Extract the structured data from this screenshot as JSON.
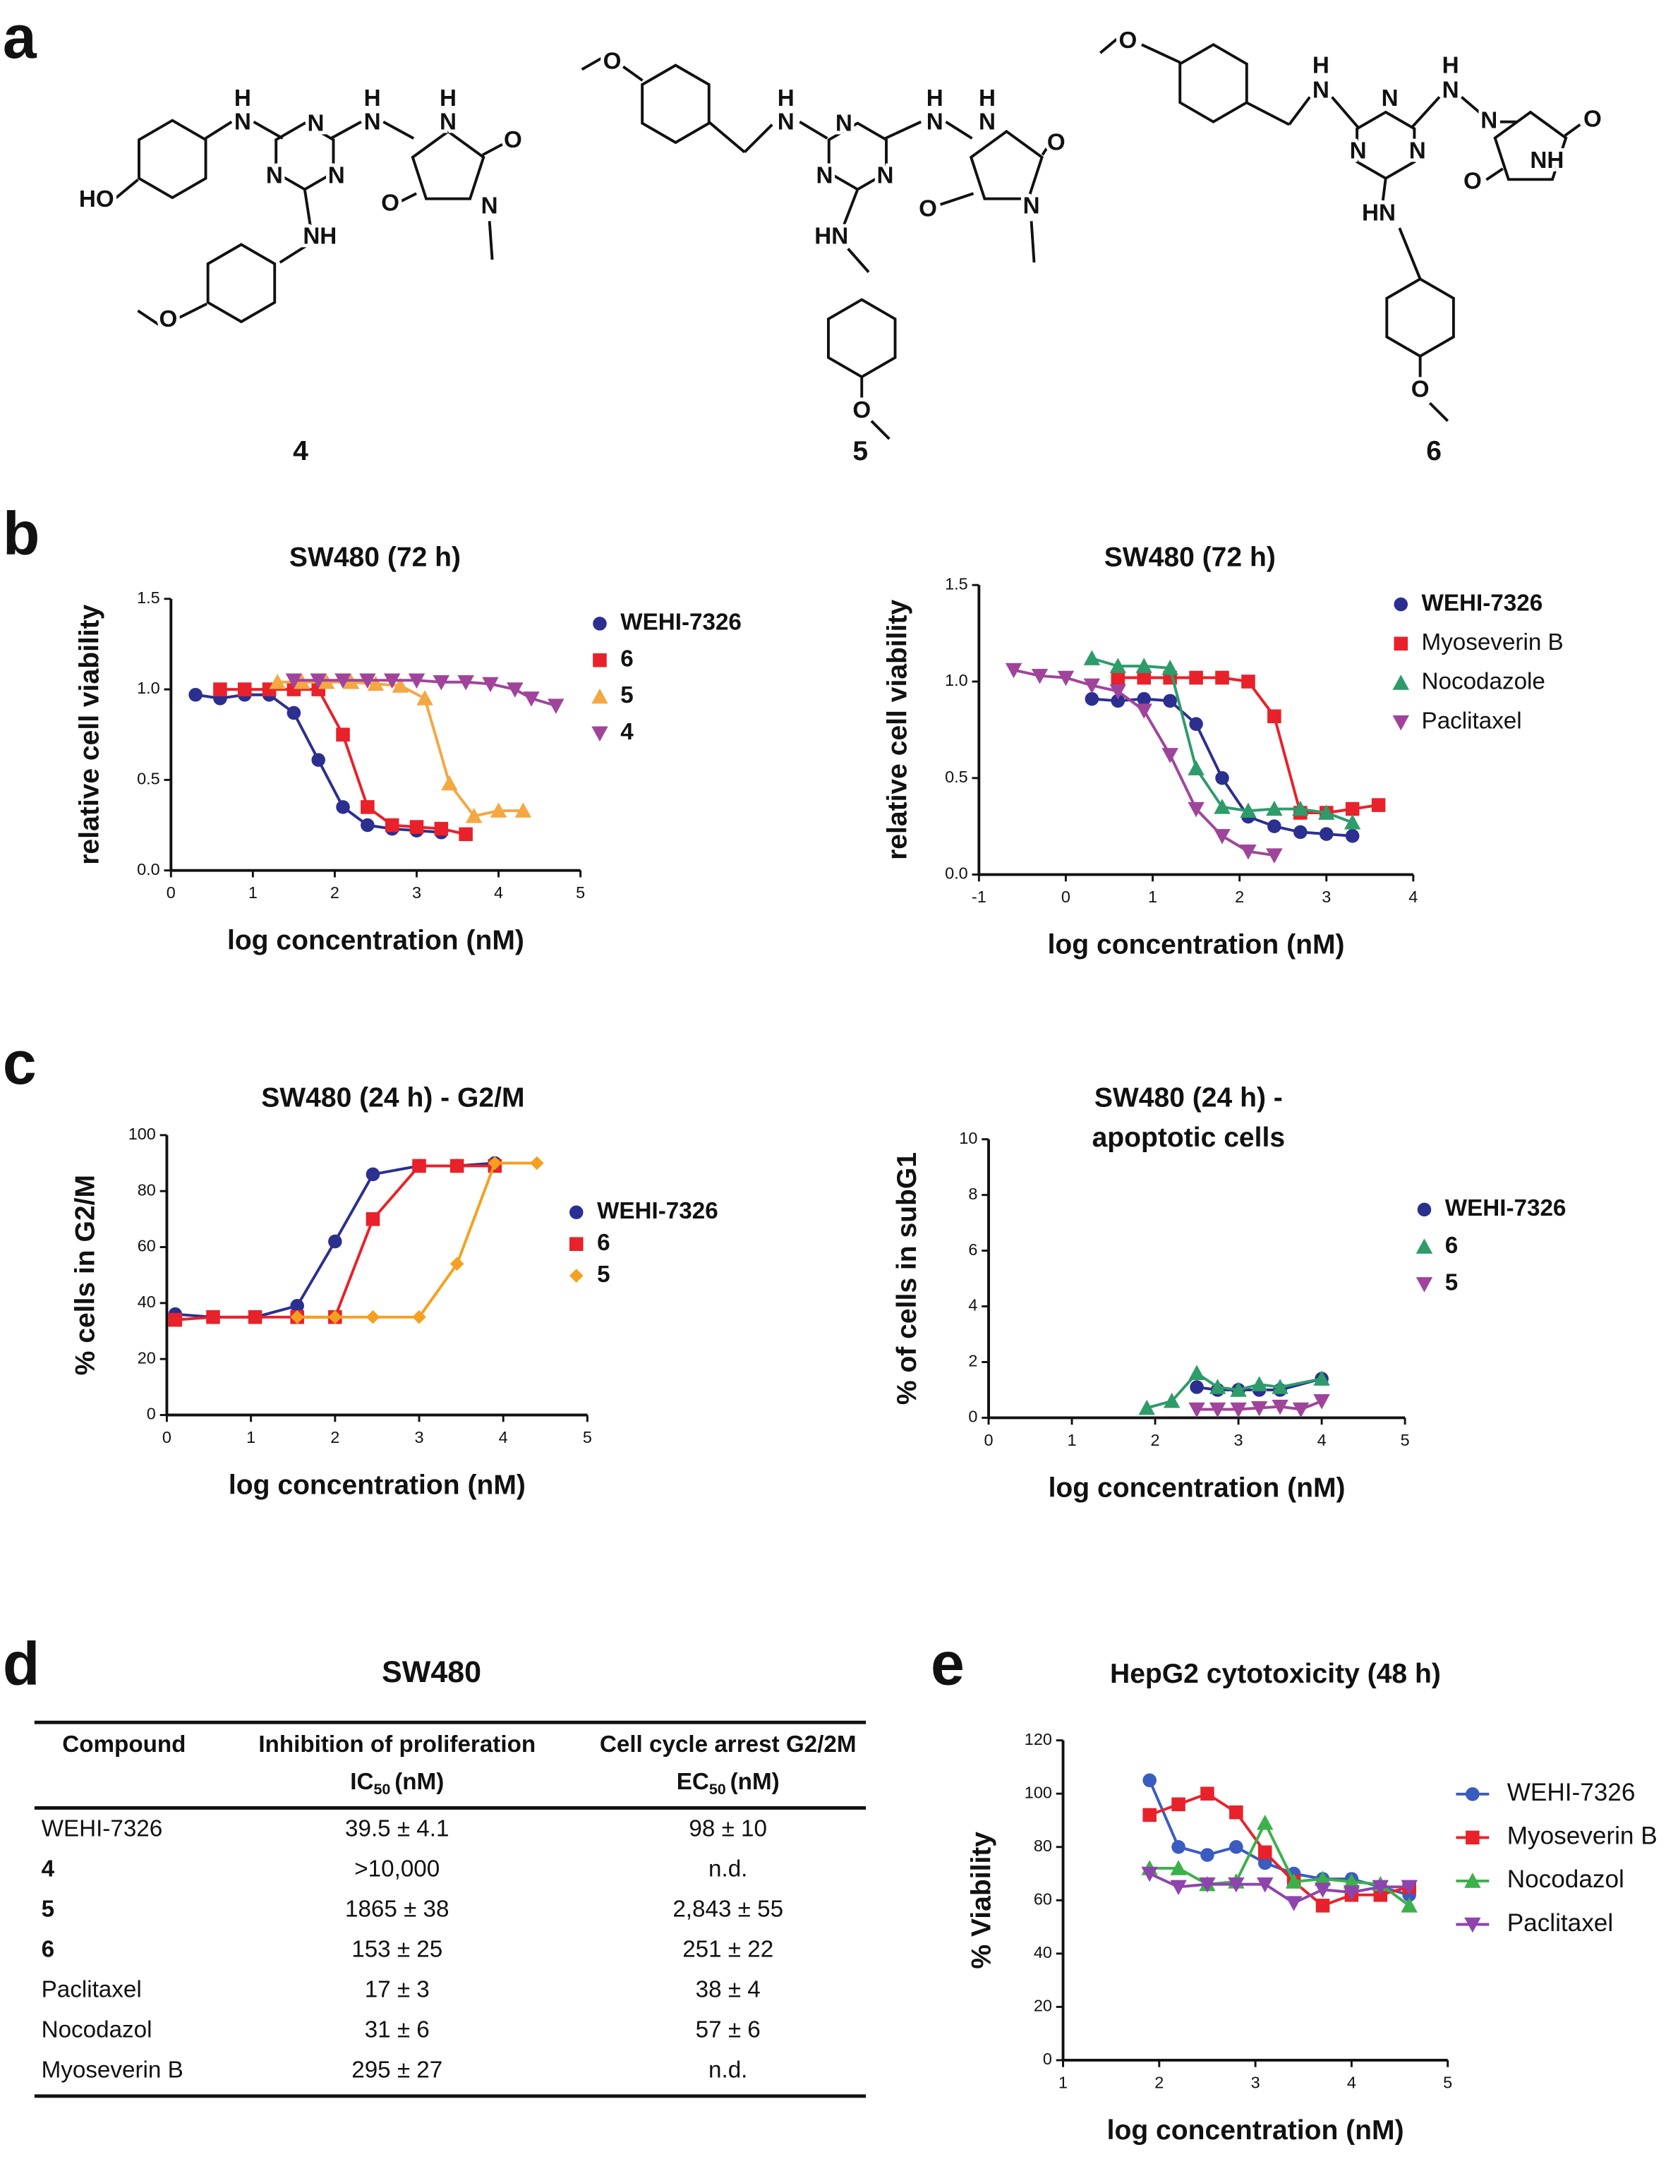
{
  "panels": [
    "a",
    "b",
    "c",
    "d",
    "e"
  ],
  "structures": [
    {
      "label": "4",
      "atoms": [
        "H",
        "N",
        "N",
        "N",
        "N",
        "H",
        "N",
        "H",
        "N",
        "O",
        "N",
        "O",
        "HO",
        "NH",
        "O"
      ]
    },
    {
      "label": "5",
      "atoms": [
        "O",
        "H",
        "N",
        "N",
        "N",
        "N",
        "H",
        "N",
        "H",
        "N",
        "O",
        "N",
        "O",
        "HN",
        "O"
      ]
    },
    {
      "label": "6",
      "atoms": [
        "O",
        "H",
        "N",
        "N",
        "N",
        "N",
        "H",
        "N",
        "N",
        "O",
        "O",
        "NH",
        "HN",
        "O"
      ]
    }
  ],
  "chart_data": [
    {
      "type": "line",
      "title": "SW480 (72 h)",
      "xlabel": "log concentration (nM)",
      "ylabel": "relative cell viability",
      "xlim": [
        0,
        5
      ],
      "ylim": [
        0,
        1.5
      ],
      "xticks": [
        0,
        1,
        2,
        3,
        4,
        5
      ],
      "yticks": [
        {
          "value": 0,
          "label": "0.0"
        },
        0.5,
        {
          "value": 1,
          "label": "1.0"
        },
        1.5
      ],
      "legend": "right",
      "series": [
        {
          "name": "WEHI-7326",
          "color": "#2b2f8f",
          "marker": "circle",
          "x": [
            0.3,
            0.6,
            0.9,
            1.2,
            1.5,
            1.8,
            2.1,
            2.4,
            2.7,
            3.0,
            3.3
          ],
          "values": [
            0.97,
            0.95,
            0.97,
            0.97,
            0.87,
            0.61,
            0.35,
            0.25,
            0.23,
            0.22,
            0.21
          ]
        },
        {
          "name": "6",
          "color": "#e8212a",
          "marker": "square",
          "x": [
            0.6,
            0.9,
            1.2,
            1.5,
            1.8,
            2.1,
            2.4,
            2.7,
            3.0,
            3.3,
            3.6
          ],
          "values": [
            1.0,
            1.0,
            1.0,
            1.0,
            1.0,
            0.75,
            0.35,
            0.25,
            0.24,
            0.23,
            0.2
          ]
        },
        {
          "name": "5",
          "color": "#f5a742",
          "marker": "triangle-up",
          "x": [
            1.3,
            1.6,
            1.9,
            2.2,
            2.5,
            2.8,
            3.1,
            3.4,
            3.7,
            4.0,
            4.3
          ],
          "values": [
            1.04,
            1.04,
            1.04,
            1.04,
            1.03,
            1.02,
            0.95,
            0.48,
            0.3,
            0.33,
            0.33
          ]
        },
        {
          "name": "4",
          "color": "#a0449b",
          "marker": "triangle-down",
          "x": [
            1.5,
            1.8,
            2.1,
            2.4,
            2.7,
            3.0,
            3.3,
            3.6,
            3.9,
            4.2,
            4.4,
            4.7
          ],
          "values": [
            1.05,
            1.05,
            1.05,
            1.05,
            1.05,
            1.05,
            1.04,
            1.04,
            1.03,
            1.0,
            0.95,
            0.91
          ]
        }
      ]
    },
    {
      "type": "line",
      "title": "SW480 (72 h)",
      "xlabel": "log concentration (nM)",
      "ylabel": "relative cell viability",
      "xlim": [
        -1,
        4
      ],
      "ylim": [
        0,
        1.5
      ],
      "xticks": [
        -1,
        0,
        1,
        2,
        3,
        4
      ],
      "yticks": [
        {
          "value": 0,
          "label": "0.0"
        },
        0.5,
        {
          "value": 1,
          "label": "1.0"
        },
        1.5
      ],
      "legend": "right",
      "series": [
        {
          "name": "WEHI-7326",
          "color": "#2b2f8f",
          "marker": "circle",
          "x": [
            0.3,
            0.6,
            0.9,
            1.2,
            1.5,
            1.8,
            2.1,
            2.4,
            2.7,
            3.0,
            3.3
          ],
          "values": [
            0.91,
            0.9,
            0.91,
            0.9,
            0.78,
            0.5,
            0.3,
            0.25,
            0.22,
            0.21,
            0.2
          ]
        },
        {
          "name": "Myoseverin B",
          "color": "#e8212a",
          "marker": "square",
          "x": [
            0.6,
            0.9,
            1.2,
            1.5,
            1.8,
            2.1,
            2.4,
            2.7,
            3.0,
            3.3,
            3.6
          ],
          "values": [
            1.02,
            1.02,
            1.02,
            1.02,
            1.02,
            1.0,
            0.82,
            0.32,
            0.32,
            0.34,
            0.36
          ]
        },
        {
          "name": "Nocodazole",
          "color": "#2e9b6b",
          "marker": "triangle-up",
          "x": [
            0.3,
            0.6,
            0.9,
            1.2,
            1.5,
            1.8,
            2.1,
            2.4,
            2.7,
            3.0,
            3.3
          ],
          "values": [
            1.12,
            1.08,
            1.08,
            1.07,
            0.55,
            0.35,
            0.33,
            0.34,
            0.34,
            0.32,
            0.27
          ]
        },
        {
          "name": "Paclitaxel",
          "color": "#a0449b",
          "marker": "triangle-down",
          "x": [
            -0.6,
            -0.3,
            0,
            0.3,
            0.6,
            0.9,
            1.2,
            1.5,
            1.8,
            2.1,
            2.4
          ],
          "values": [
            1.06,
            1.03,
            1.02,
            0.98,
            0.95,
            0.85,
            0.62,
            0.34,
            0.2,
            0.12,
            0.1
          ]
        }
      ]
    },
    {
      "type": "line",
      "title": "SW480 (24 h) - G2/M",
      "xlabel": "log concentration (nM)",
      "ylabel": "% cells in G2/M",
      "xlim": [
        0,
        5
      ],
      "ylim": [
        0,
        100
      ],
      "xticks": [
        0,
        1,
        2,
        3,
        4,
        5
      ],
      "yticks": [
        0,
        20,
        40,
        60,
        80,
        100
      ],
      "legend": "right",
      "series": [
        {
          "name": "WEHI-7326",
          "color": "#2b2f8f",
          "marker": "circle",
          "x": [
            0.1,
            0.55,
            1.05,
            1.55,
            2.0,
            2.45,
            3.0,
            3.45,
            3.9
          ],
          "values": [
            36,
            35,
            35,
            39,
            62,
            86,
            89,
            89,
            90
          ]
        },
        {
          "name": "6",
          "color": "#e8212a",
          "marker": "square",
          "x": [
            0.1,
            0.55,
            1.05,
            1.55,
            2.0,
            2.45,
            3.0,
            3.45,
            3.9
          ],
          "values": [
            34,
            35,
            35,
            35,
            35,
            70,
            89,
            89,
            89
          ]
        },
        {
          "name": "5",
          "color": "#f5a020",
          "marker": "diamond",
          "x": [
            1.55,
            2.0,
            2.45,
            3.0,
            3.45,
            3.9,
            4.4
          ],
          "values": [
            35,
            35,
            35,
            35,
            54,
            90,
            90
          ]
        }
      ]
    },
    {
      "type": "line",
      "title": "SW480 (24 h) -",
      "subtitle": "apoptotic cells",
      "xlabel": "log concentration (nM)",
      "ylabel": "% of cells in subG1",
      "xlim": [
        0,
        5
      ],
      "ylim": [
        0,
        10
      ],
      "xticks": [
        0,
        1,
        2,
        3,
        4,
        5
      ],
      "yticks": [
        0,
        2,
        4,
        6,
        8,
        10
      ],
      "legend": "right",
      "series": [
        {
          "name": "WEHI-7326",
          "color": "#2b2f8f",
          "marker": "circle",
          "x": [
            2.5,
            2.75,
            3.0,
            3.25,
            3.5,
            4.0
          ],
          "values": [
            1.1,
            1.0,
            1.0,
            1.0,
            1.0,
            1.4
          ]
        },
        {
          "name": "6",
          "color": "#2e9b6b",
          "marker": "triangle-up",
          "x": [
            1.9,
            2.2,
            2.5,
            2.75,
            3.0,
            3.25,
            3.5,
            4.0
          ],
          "values": [
            0.35,
            0.6,
            1.6,
            1.1,
            1.0,
            1.2,
            1.1,
            1.4
          ]
        },
        {
          "name": "5",
          "color": "#a0449b",
          "marker": "triangle-down",
          "x": [
            2.5,
            2.75,
            3.0,
            3.25,
            3.5,
            3.75,
            4.0
          ],
          "values": [
            0.3,
            0.3,
            0.3,
            0.35,
            0.4,
            0.3,
            0.6
          ]
        }
      ]
    },
    {
      "type": "line",
      "title": "HepG2 cytotoxicity (48 h)",
      "xlabel": "log concentration (nM)",
      "ylabel": "% Viability",
      "xlim": [
        1,
        5
      ],
      "ylim": [
        0,
        120
      ],
      "xticks": [
        1,
        2,
        3,
        4,
        5
      ],
      "yticks": [
        0,
        20,
        40,
        60,
        80,
        100,
        120
      ],
      "legend": "right",
      "series": [
        {
          "name": "WEHI-7326",
          "color": "#3a5bbf",
          "marker": "circle",
          "x": [
            1.9,
            2.2,
            2.5,
            2.8,
            3.1,
            3.4,
            3.7,
            4.0,
            4.3,
            4.6
          ],
          "values": [
            105,
            80,
            77,
            80,
            74,
            70,
            68,
            68,
            65,
            62
          ]
        },
        {
          "name": "Myoseverin B",
          "color": "#e8212a",
          "marker": "square",
          "x": [
            1.9,
            2.2,
            2.5,
            2.8,
            3.1,
            3.4,
            3.7,
            4.0,
            4.3,
            4.6
          ],
          "values": [
            92,
            96,
            100,
            93,
            78,
            67,
            58,
            62,
            62,
            65
          ]
        },
        {
          "name": "Nocodazol",
          "color": "#3cb04a",
          "marker": "triangle-up",
          "x": [
            1.9,
            2.2,
            2.5,
            2.8,
            3.1,
            3.4,
            3.7,
            4.0,
            4.3,
            4.6
          ],
          "values": [
            72,
            72,
            66,
            67,
            89,
            67,
            68,
            67,
            66,
            58
          ]
        },
        {
          "name": "Paclitaxel",
          "color": "#8e44ad",
          "marker": "triangle-down",
          "x": [
            1.9,
            2.2,
            2.5,
            2.8,
            3.1,
            3.4,
            3.7,
            4.0,
            4.3,
            4.6
          ],
          "values": [
            70,
            65,
            66,
            66,
            66,
            59,
            64,
            63,
            65,
            65
          ]
        }
      ]
    }
  ],
  "table": {
    "title": "SW480",
    "header": [
      "Compound",
      "Inhibition of proliferation",
      "Cell cycle arrest G2/2M"
    ],
    "units": [
      {
        "base": "IC",
        "sub": "50",
        "suffix": "(nM)"
      },
      {
        "base": "EC",
        "sub": "50",
        "suffix": "(nM)"
      }
    ],
    "rows": [
      [
        "WEHI-7326",
        "39.5 ± 4.1",
        "98 ± 10"
      ],
      [
        "4",
        ">10,000",
        "n.d."
      ],
      [
        "5",
        "1865 ± 38",
        "2,843 ± 55"
      ],
      [
        "6",
        "153 ± 25",
        "251 ± 22"
      ],
      [
        "Paclitaxel",
        "17 ± 3",
        "38 ± 4"
      ],
      [
        "Nocodazol",
        "31 ± 6",
        "57 ± 6"
      ],
      [
        "Myoseverin B",
        "295 ± 27",
        "n.d."
      ]
    ],
    "bold_rows": [
      1,
      2,
      3
    ]
  }
}
